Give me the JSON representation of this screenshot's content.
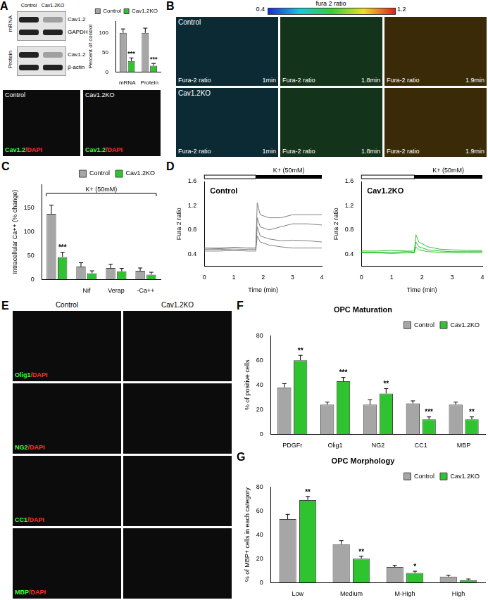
{
  "blot": {
    "panel": "A",
    "columns": [
      "Control",
      "Cav1.2KO"
    ],
    "groups": [
      {
        "label": "mRNA",
        "bands": [
          "Cav1.2",
          "GAPDH"
        ]
      },
      {
        "label": "Protein",
        "bands": [
          "Cav1.2",
          "β-actin"
        ]
      }
    ]
  },
  "panel_a_images": {
    "columns": [
      "Control",
      "Cav1.2KO"
    ],
    "stain": "Cav1.2/DAPI"
  },
  "panel_b": {
    "panel": "B",
    "colorbar": {
      "label": "fura 2 ratio",
      "min": 0.4,
      "max": 1.2
    },
    "rows": [
      "Control",
      "Cav1.2KO"
    ],
    "image_label": "Fura-2 ratio",
    "times": [
      "1min",
      "1.8min",
      "1.9min"
    ]
  },
  "panel_e": {
    "panel": "E",
    "columns": [
      "Control",
      "Cav1.2KO"
    ],
    "rows": [
      "Olig1/DAPI",
      "NG2/DAPI",
      "CC1/DAPI",
      "MBP/DAPI"
    ]
  },
  "chart_data": [
    {
      "type": "bar",
      "y_label": "Percent of control",
      "categories": [
        "mRNA",
        "Protein"
      ],
      "series": [
        {
          "name": "Control",
          "color": "#a6a6a6",
          "values": [
            100,
            100
          ],
          "errors": [
            10,
            12
          ]
        },
        {
          "name": "Cav1.2KO",
          "color": "#2fc42f",
          "values": [
            28,
            16
          ],
          "errors": [
            8,
            6
          ],
          "significance": [
            "***",
            "***"
          ]
        }
      ],
      "ylim": [
        0,
        130
      ],
      "yticks": [
        0,
        50,
        100
      ],
      "legend": "upper right"
    },
    {
      "panel": "C",
      "type": "bar",
      "y_label": "Intracellular Ca++ (% change)",
      "categories": [
        null,
        "Nif",
        "Verap",
        "-Ca++"
      ],
      "annotations": [
        {
          "text": "K+ (50mM)"
        }
      ],
      "series": [
        {
          "name": "Control",
          "color": "#a6a6a6",
          "values": [
            138,
            27,
            24,
            18
          ],
          "errors": [
            18,
            8,
            8,
            6
          ]
        },
        {
          "name": "Cav1.2KO",
          "color": "#2fc42f",
          "values": [
            47,
            13,
            17,
            10
          ],
          "errors": [
            10,
            5,
            6,
            5
          ],
          "significance": [
            "***",
            null,
            null,
            null
          ]
        }
      ],
      "ylim": [
        0,
        200
      ],
      "yticks": [
        0,
        50,
        100,
        150
      ],
      "legend": "upper right"
    },
    {
      "panel": "D",
      "type": "line",
      "title": "Control",
      "x_label": "Time (min)",
      "y_label": "Fura 2 ratio",
      "annotations": [
        {
          "text": "K+ (50mM)",
          "x_start": 1.75,
          "x_end": 4
        }
      ],
      "x": [
        0,
        0.5,
        1,
        1.5,
        1.75,
        1.8,
        1.9,
        2.2,
        2.6,
        3,
        3.5,
        4
      ],
      "series": [
        {
          "color": "#808080",
          "values": [
            0.5,
            0.5,
            0.51,
            0.5,
            0.5,
            1.25,
            1.05,
            1.0,
            1.0,
            1.05,
            1.05,
            1.05
          ]
        },
        {
          "color": "#808080",
          "values": [
            0.5,
            0.49,
            0.5,
            0.5,
            0.5,
            1.0,
            0.85,
            0.8,
            0.85,
            0.9,
            0.9,
            0.88
          ]
        },
        {
          "color": "#808080",
          "values": [
            0.48,
            0.48,
            0.47,
            0.48,
            0.48,
            0.85,
            0.7,
            0.65,
            0.62,
            0.63,
            0.62,
            0.6
          ]
        },
        {
          "color": "#808080",
          "values": [
            0.45,
            0.45,
            0.46,
            0.45,
            0.45,
            0.7,
            0.6,
            0.55,
            0.52,
            0.5,
            0.5,
            0.5
          ]
        }
      ],
      "xlim": [
        0,
        4
      ],
      "xticks": [
        0,
        1,
        2,
        3,
        4
      ],
      "ylim": [
        0.2,
        1.6
      ],
      "yticks": [
        0.4,
        0.8,
        1.2,
        1.6
      ]
    },
    {
      "type": "line",
      "title": "Cav1.2KO",
      "x_label": "Time (min)",
      "y_label": "Fura 2 ratio",
      "annotations": [
        {
          "text": "K+ (50mM)",
          "x_start": 1.75,
          "x_end": 4
        }
      ],
      "x": [
        0,
        0.5,
        1,
        1.5,
        1.75,
        1.8,
        1.9,
        2.2,
        2.6,
        3,
        3.5,
        4
      ],
      "series": [
        {
          "color": "#2fc42f",
          "values": [
            0.45,
            0.45,
            0.46,
            0.45,
            0.45,
            0.72,
            0.6,
            0.52,
            0.48,
            0.47,
            0.46,
            0.46
          ]
        },
        {
          "color": "#2fc42f",
          "values": [
            0.43,
            0.43,
            0.43,
            0.44,
            0.43,
            0.6,
            0.52,
            0.47,
            0.45,
            0.44,
            0.44,
            0.44
          ]
        },
        {
          "color": "#2fc42f",
          "values": [
            0.42,
            0.42,
            0.41,
            0.42,
            0.42,
            0.52,
            0.47,
            0.44,
            0.43,
            0.42,
            0.42,
            0.42
          ]
        }
      ],
      "xlim": [
        0,
        4
      ],
      "xticks": [
        0,
        1,
        2,
        3,
        4
      ],
      "ylim": [
        0.2,
        1.6
      ],
      "yticks": [
        0.4,
        0.8,
        1.2,
        1.6
      ]
    },
    {
      "panel": "F",
      "type": "bar",
      "title": "OPC Maturation",
      "y_label": "% of positive cells",
      "categories": [
        "PDGFr",
        "Olig1",
        "NG2",
        "CC1",
        "MBP"
      ],
      "series": [
        {
          "name": "Control",
          "color": "#a6a6a6",
          "values": [
            38,
            24,
            24,
            25,
            24
          ],
          "errors": [
            3,
            2,
            4,
            2,
            2
          ]
        },
        {
          "name": "Cav1.2KO",
          "color": "#2fc42f",
          "values": [
            60,
            43,
            33,
            12,
            12
          ],
          "errors": [
            4,
            3,
            4,
            2,
            2
          ],
          "significance": [
            "**",
            "***",
            "**",
            "***",
            "**"
          ]
        }
      ],
      "ylim": [
        0,
        80
      ],
      "yticks": [
        0,
        20,
        40,
        60,
        80
      ],
      "legend": "upper right"
    },
    {
      "panel": "G",
      "type": "bar",
      "title": "OPC Morphology",
      "y_label": "% of MBP+ cells in each category",
      "categories": [
        "Low",
        "Medium",
        "M-High",
        "High"
      ],
      "series": [
        {
          "name": "Control",
          "color": "#a6a6a6",
          "values": [
            53,
            32,
            13,
            5
          ],
          "errors": [
            4,
            3,
            1.5,
            1
          ]
        },
        {
          "name": "Cav1.2KO",
          "color": "#2fc42f",
          "values": [
            69,
            20,
            8,
            2
          ],
          "errors": [
            3,
            2,
            1.5,
            1
          ],
          "significance": [
            "**",
            "**",
            "*",
            null
          ]
        }
      ],
      "ylim": [
        0,
        80
      ],
      "yticks": [
        0,
        20,
        40,
        60,
        80
      ],
      "legend": "upper right"
    }
  ]
}
